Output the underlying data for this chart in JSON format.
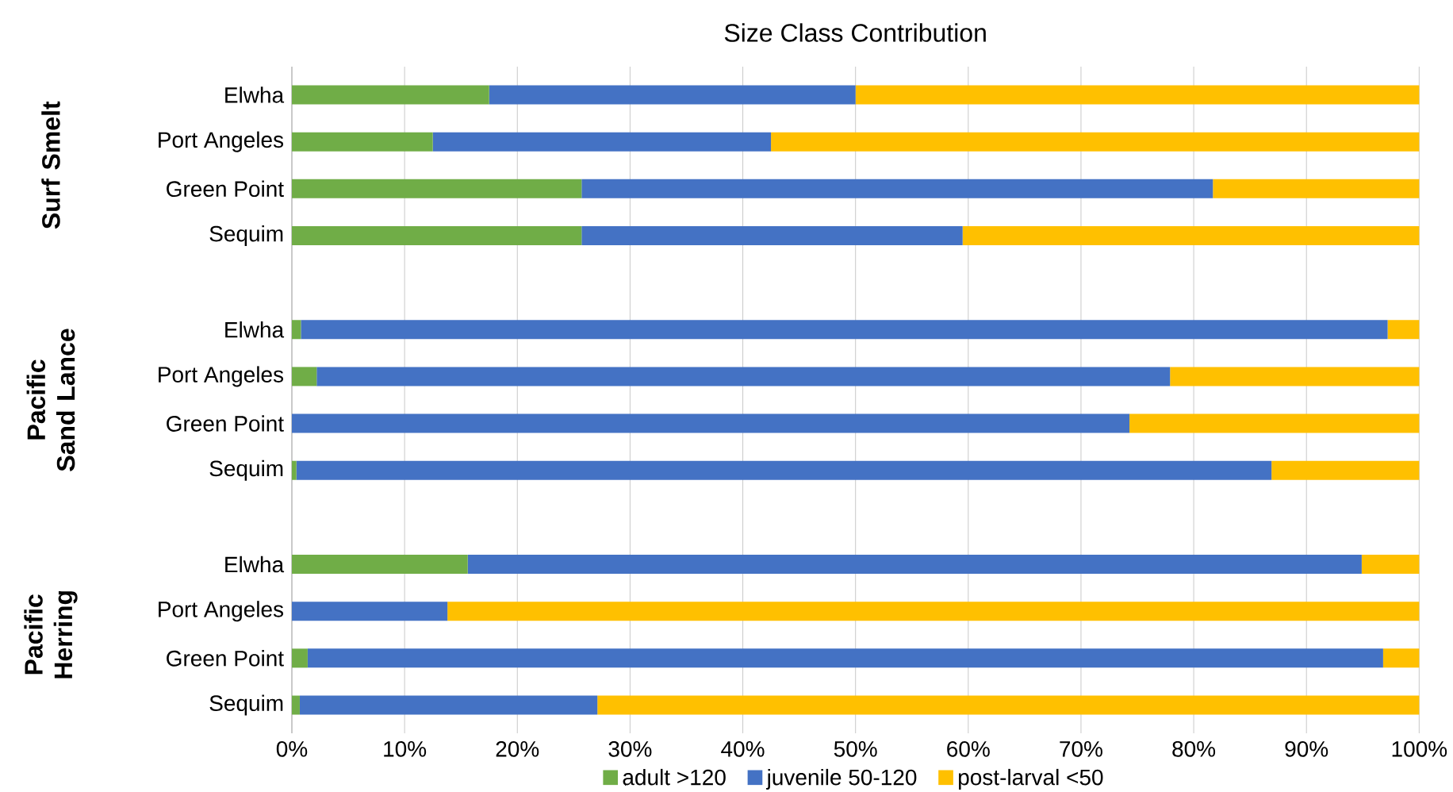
{
  "chart_data": {
    "type": "bar",
    "orientation": "horizontal",
    "stacked": true,
    "title": "Size Class Contribution",
    "categories": [
      "Elwha",
      "Port Angeles",
      "Green Point",
      "Sequim",
      null,
      "Elwha",
      "Port Angeles",
      "Green Point",
      "Sequim",
      null,
      "Elwha",
      "Port Angeles",
      "Green Point",
      "Sequim"
    ],
    "series": [
      {
        "name": "adult >120",
        "color": "#70ad47",
        "values": [
          17.5,
          12.5,
          25.7,
          25.7,
          null,
          0.8,
          2.2,
          0,
          0.4,
          null,
          15.6,
          0,
          1.4,
          0.7
        ]
      },
      {
        "name": "juvenile 50-120",
        "color": "#4472c4",
        "values": [
          32.5,
          30,
          56,
          33.8,
          null,
          96.4,
          75.7,
          74.3,
          86.5,
          null,
          79.3,
          13.8,
          95.4,
          26.4
        ]
      },
      {
        "name": "post-larval <50",
        "color": "#ffc000",
        "values": [
          50,
          57.5,
          18.3,
          40.5,
          null,
          2.8,
          22.1,
          25.7,
          13.1,
          null,
          5.1,
          86.2,
          3.2,
          72.9
        ]
      }
    ],
    "xlim": [
      0,
      100
    ],
    "xticks": [
      {
        "value": 0,
        "label": "0%"
      },
      {
        "value": 10,
        "label": "10%"
      },
      {
        "value": 20,
        "label": "20%"
      },
      {
        "value": 30,
        "label": "30%"
      },
      {
        "value": 40,
        "label": "40%"
      },
      {
        "value": 50,
        "label": "50%"
      },
      {
        "value": 60,
        "label": "60%"
      },
      {
        "value": 70,
        "label": "70%"
      },
      {
        "value": 80,
        "label": "80%"
      },
      {
        "value": 90,
        "label": "90%"
      },
      {
        "value": 100,
        "label": "100%"
      }
    ],
    "grid": "x",
    "legend": "bottom",
    "annotations": [
      "Surf Smelt",
      "Pacific Sand Lance",
      "Pacific Herring"
    ]
  }
}
